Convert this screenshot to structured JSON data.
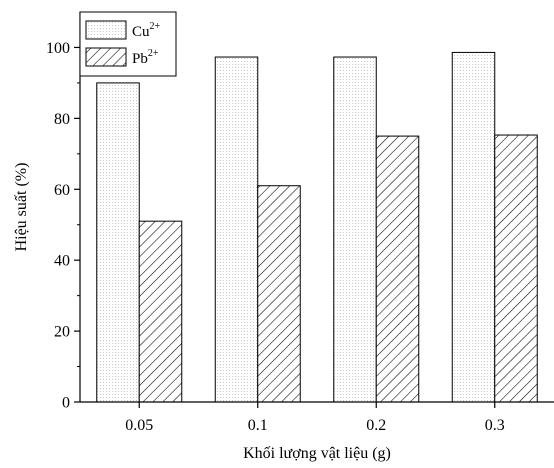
{
  "chart_data": {
    "type": "bar",
    "xlabel": "Khối lượng vật liệu (g)",
    "ylabel": "Hiệu suất (%)",
    "categories": [
      "0.05",
      "0.1",
      "0.2",
      "0.3"
    ],
    "ylim": [
      0,
      110
    ],
    "yticks": [
      "0",
      "20",
      "40",
      "60",
      "80",
      "100"
    ],
    "grid": false,
    "legend_position": "top-left",
    "series": [
      {
        "name": "Cu",
        "superscript": "2+",
        "values": [
          90,
          97.3,
          97.3,
          98.6
        ],
        "fill": "dotted-light-gray"
      },
      {
        "name": "Pb",
        "superscript": "2+",
        "values": [
          51,
          61,
          75,
          75.3
        ],
        "fill": "diagonal-hatch"
      }
    ],
    "colors": {
      "axis": "#000000",
      "bar_stroke": "#000000",
      "dot_fill": "#c8c8c8",
      "hatch_stroke": "#000000"
    }
  }
}
